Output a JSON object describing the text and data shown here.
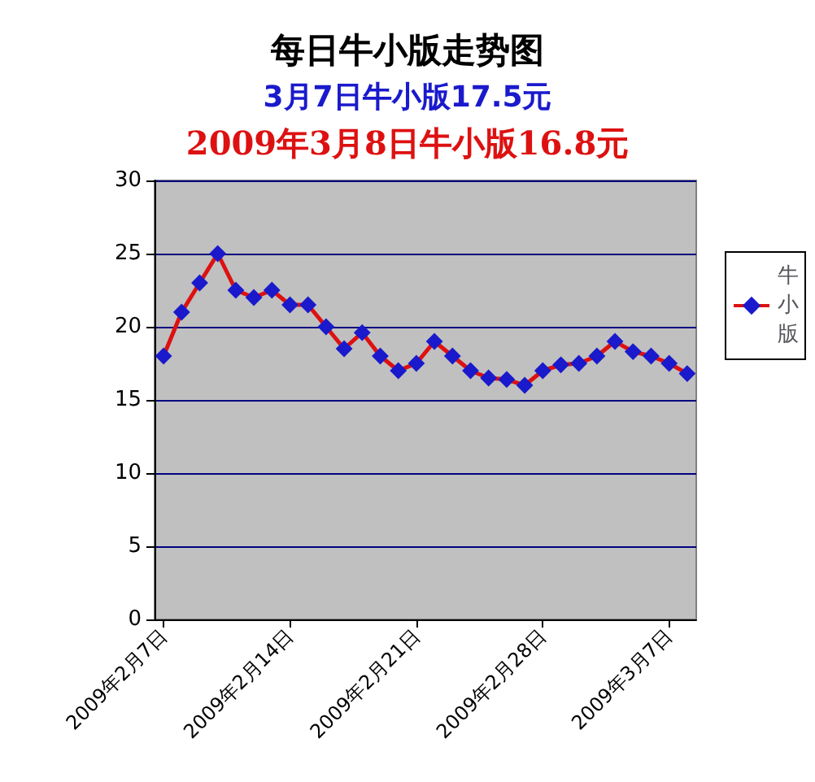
{
  "chart_data": {
    "type": "line",
    "title": "每日牛小版走势图",
    "subtitle": "3月7日牛小版17.5元",
    "annotations": [
      "2009年3月8日牛小版16.8元"
    ],
    "categories": [
      "2009年2月7日",
      null,
      null,
      null,
      null,
      null,
      null,
      "2009年2月14日",
      null,
      null,
      null,
      null,
      null,
      null,
      "2009年2月21日",
      null,
      null,
      null,
      null,
      null,
      null,
      "2009年2月28日",
      null,
      null,
      null,
      null,
      null,
      null,
      "2009年3月7日",
      null
    ],
    "series": [
      {
        "name": "牛小版",
        "color": "#dd1111",
        "values": [
          18,
          21,
          23,
          25,
          22.5,
          22,
          22.5,
          21.5,
          21.5,
          20,
          18.5,
          19.6,
          18,
          17,
          17.5,
          19,
          18,
          17,
          16.5,
          16.4,
          16,
          17,
          17.4,
          17.5,
          18,
          19,
          18.3,
          18,
          17.5,
          16.8
        ]
      }
    ],
    "ylim": [
      0,
      30
    ],
    "yticks": [
      0,
      5,
      10,
      15,
      20,
      25,
      30
    ],
    "grid": "y",
    "legend": "right",
    "marker": "diamond"
  }
}
